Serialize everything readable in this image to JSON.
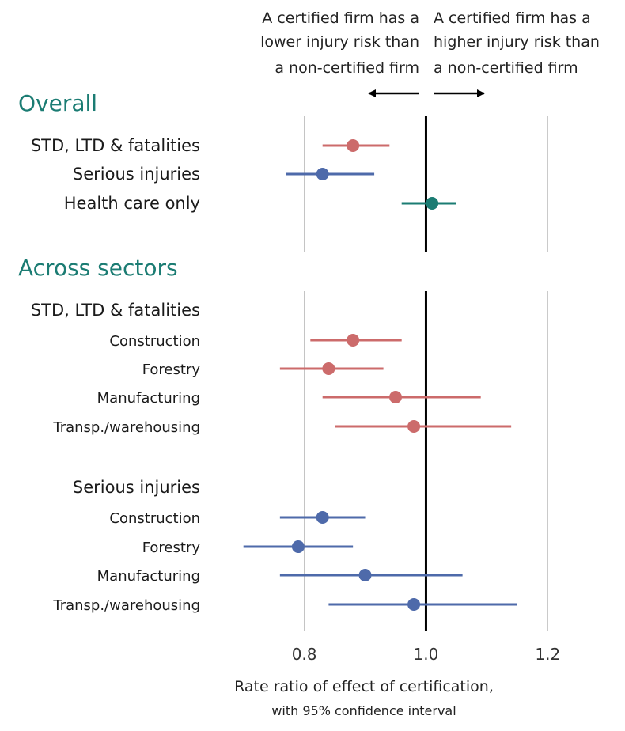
{
  "header": {
    "left": [
      "A certified firm has a",
      "lower injury risk than",
      "a non-certified firm"
    ],
    "right": [
      "A certified firm has a",
      "higher injury risk than",
      "a non-certified firm"
    ]
  },
  "colors": {
    "accent": "#1b7c73",
    "series_red": "#cc6b6b",
    "series_blue": "#4e6aaa",
    "series_teal": "#1b7c73",
    "gridline": "#bdbdbd",
    "refline": "#000000"
  },
  "chart_data": {
    "type": "scatter",
    "subtype": "forest-plot-with-confidence-intervals",
    "xlabel": "Rate ratio of effect of certification,",
    "xlabel_sub": "with 95% confidence interval",
    "xlim": [
      0.69,
      1.21
    ],
    "xticks": [
      0.8,
      1.0,
      1.2
    ],
    "xtick_labels": [
      "0.8",
      "1.0",
      "1.2"
    ],
    "reference_line": 1.0,
    "grid": true,
    "panels": [
      {
        "title": "Overall",
        "rows": [
          {
            "label": "STD, LTD & fatalities",
            "estimate": 0.88,
            "lower": 0.83,
            "upper": 0.94,
            "color": "red",
            "style": "main"
          },
          {
            "label": "Serious injuries",
            "estimate": 0.83,
            "lower": 0.77,
            "upper": 0.915,
            "color": "blue",
            "style": "main"
          },
          {
            "label": "Health care only",
            "estimate": 1.01,
            "lower": 0.96,
            "upper": 1.05,
            "color": "teal",
            "style": "main"
          }
        ]
      },
      {
        "title": "Across sectors",
        "rows": [
          {
            "label": "STD, LTD & fatalities",
            "style": "group"
          },
          {
            "label": "Construction",
            "estimate": 0.88,
            "lower": 0.81,
            "upper": 0.96,
            "color": "red",
            "style": "sub"
          },
          {
            "label": "Forestry",
            "estimate": 0.84,
            "lower": 0.76,
            "upper": 0.93,
            "color": "red",
            "style": "sub"
          },
          {
            "label": "Manufacturing",
            "estimate": 0.95,
            "lower": 0.83,
            "upper": 1.09,
            "color": "red",
            "style": "sub"
          },
          {
            "label": "Transp./warehousing",
            "estimate": 0.98,
            "lower": 0.85,
            "upper": 1.14,
            "color": "red",
            "style": "sub"
          },
          {
            "label": "Serious injuries",
            "style": "group"
          },
          {
            "label": "Construction",
            "estimate": 0.83,
            "lower": 0.76,
            "upper": 0.9,
            "color": "blue",
            "style": "sub"
          },
          {
            "label": "Forestry",
            "estimate": 0.79,
            "lower": 0.7,
            "upper": 0.88,
            "color": "blue",
            "style": "sub"
          },
          {
            "label": "Manufacturing",
            "estimate": 0.9,
            "lower": 0.76,
            "upper": 1.06,
            "color": "blue",
            "style": "sub"
          },
          {
            "label": "Transp./warehousing",
            "estimate": 0.98,
            "lower": 0.84,
            "upper": 1.15,
            "color": "blue",
            "style": "sub"
          }
        ]
      }
    ]
  }
}
